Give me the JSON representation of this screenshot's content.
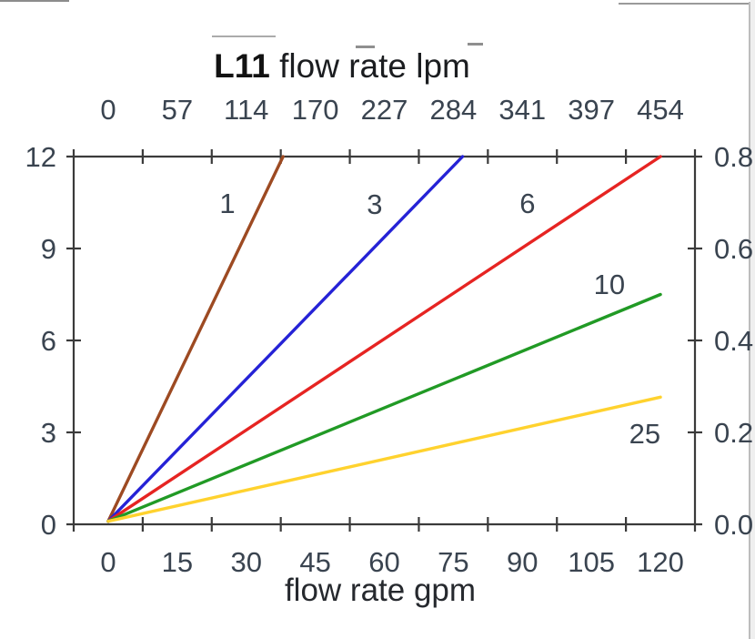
{
  "chart_data": {
    "type": "line",
    "title_bold": "L11",
    "title_rest": " flow rate lpm",
    "top_axis": {
      "unit": "lpm",
      "tick_labels": [
        "0",
        "57",
        "114",
        "170",
        "227",
        "284",
        "341",
        "397",
        "454"
      ]
    },
    "bottom_axis": {
      "unit": "gpm",
      "title": "flow rate gpm",
      "tick_labels": [
        "0",
        "15",
        "30",
        "45",
        "60",
        "75",
        "90",
        "105",
        "120"
      ]
    },
    "left_axis": {
      "tick_labels": [
        "12",
        "9",
        "6",
        "3",
        "0"
      ],
      "range": [
        0,
        12
      ]
    },
    "right_axis": {
      "tick_labels": [
        "0.8",
        "0.6",
        "0.4",
        "0.2",
        "0.0"
      ],
      "range": [
        0,
        0.8
      ]
    },
    "x_range_gpm": [
      0,
      120
    ],
    "grid": false,
    "legend": "inline-labels",
    "series": [
      {
        "label": "1",
        "color": "#9d4a22",
        "points_gpm_psi": [
          [
            0,
            0.1
          ],
          [
            38,
            12
          ]
        ],
        "label_at": {
          "gpm": 25.9,
          "psi": 10.5
        }
      },
      {
        "label": "3",
        "color": "#2522d6",
        "points_gpm_psi": [
          [
            0,
            0.1
          ],
          [
            77,
            12
          ]
        ],
        "label_at": {
          "gpm": 57.9,
          "psi": 10.45
        }
      },
      {
        "label": "6",
        "color": "#e62422",
        "points_gpm_psi": [
          [
            0,
            0.1
          ],
          [
            120,
            12
          ]
        ],
        "label_at": {
          "gpm": 91.1,
          "psi": 10.5
        }
      },
      {
        "label": "10",
        "color": "#219a25",
        "points_gpm_psi": [
          [
            0,
            0.1
          ],
          [
            120,
            7.5
          ]
        ],
        "label_at": {
          "gpm": 108.9,
          "psi": 7.85
        }
      },
      {
        "label": "25",
        "color": "#ffd22e",
        "points_gpm_psi": [
          [
            0,
            0.1
          ],
          [
            120,
            4.15
          ]
        ],
        "label_at": {
          "gpm": 116.6,
          "psi": 2.97
        }
      }
    ]
  }
}
